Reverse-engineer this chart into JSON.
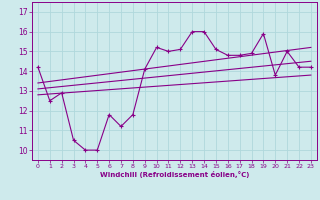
{
  "xlabel": "Windchill (Refroidissement éolien,°C)",
  "background_color": "#ceeaec",
  "grid_color": "#b0d8dc",
  "line_color": "#880088",
  "xlim": [
    -0.5,
    23.5
  ],
  "ylim": [
    9.5,
    17.5
  ],
  "xticks": [
    0,
    1,
    2,
    3,
    4,
    5,
    6,
    7,
    8,
    9,
    10,
    11,
    12,
    13,
    14,
    15,
    16,
    17,
    18,
    19,
    20,
    21,
    22,
    23
  ],
  "yticks": [
    10,
    11,
    12,
    13,
    14,
    15,
    16,
    17
  ],
  "line1_x": [
    0,
    1,
    2,
    3,
    4,
    5,
    6,
    7,
    8,
    9,
    10,
    11,
    12,
    13,
    14,
    15,
    16,
    17,
    18,
    19,
    20,
    21,
    22,
    23
  ],
  "line1_y": [
    14.2,
    12.5,
    12.9,
    10.5,
    10.0,
    10.0,
    11.8,
    11.2,
    11.8,
    14.1,
    15.2,
    15.0,
    15.1,
    16.0,
    16.0,
    15.1,
    14.8,
    14.8,
    14.9,
    15.9,
    13.8,
    15.0,
    14.2,
    14.2
  ],
  "line2_x": [
    0,
    23
  ],
  "line2_y": [
    12.8,
    13.8
  ],
  "line3_x": [
    0,
    23
  ],
  "line3_y": [
    13.4,
    15.2
  ],
  "line4_x": [
    0,
    23
  ],
  "line4_y": [
    13.1,
    14.5
  ]
}
